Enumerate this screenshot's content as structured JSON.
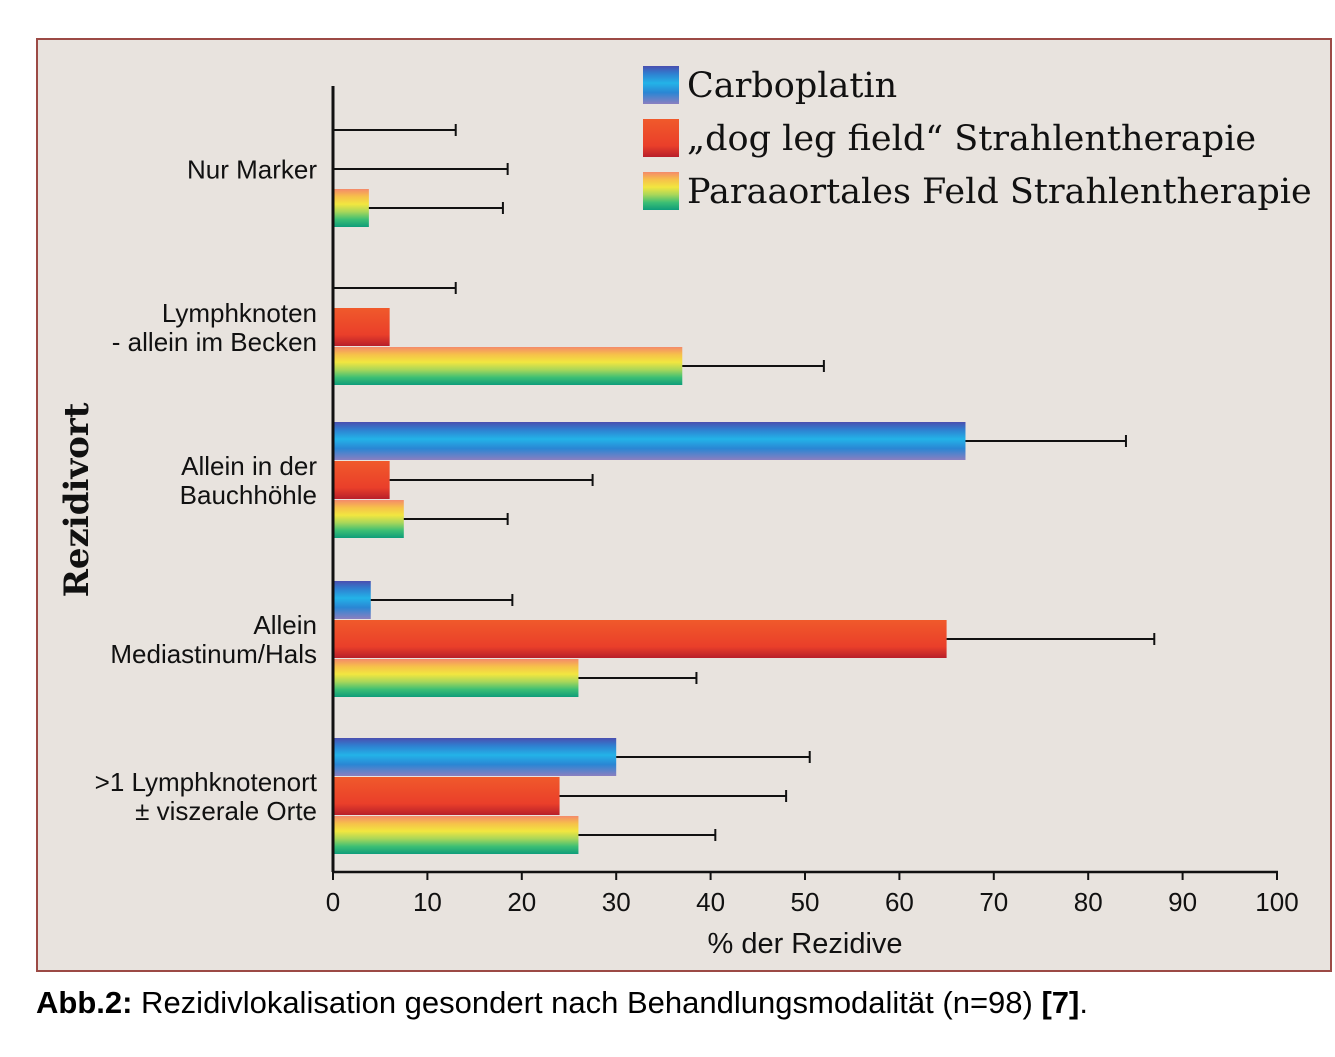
{
  "chart_data": {
    "type": "bar",
    "orientation": "horizontal",
    "ylabel": "Rezidivort",
    "xlabel": "% der Rezidive",
    "xlim": [
      0,
      100
    ],
    "xticks": [
      "0",
      "10",
      "20",
      "30",
      "40",
      "50",
      "60",
      "70",
      "80",
      "90",
      "100"
    ],
    "categories": [
      [
        "Nur Marker"
      ],
      [
        "Lymphknoten",
        "- allein im Becken"
      ],
      [
        "Allein in der",
        "Bauchhöhle"
      ],
      [
        "Allein",
        "Mediastinum/Hals"
      ],
      [
        ">1 Lymphknotenort",
        "± viszerale Orte"
      ]
    ],
    "series": [
      {
        "name": "Carboplatin",
        "color": "#2f7fd0",
        "values": [
          0,
          0,
          67,
          4,
          30
        ],
        "error_upper": [
          13,
          13,
          84,
          19,
          50.5
        ]
      },
      {
        "name": "„dog leg field“ Strahlentherapie",
        "color": "#e8452a",
        "values": [
          0,
          6,
          6,
          65,
          24
        ],
        "error_upper": [
          18.5,
          null,
          27.5,
          87,
          48
        ]
      },
      {
        "name": "Paraaortales Feld Strahlentherapie",
        "color": "#f4b84a",
        "values": [
          3.8,
          37,
          7.5,
          26,
          26
        ],
        "error_upper": [
          18,
          52,
          18.5,
          38.5,
          40.5
        ]
      }
    ],
    "legend": "top-right",
    "grid": false
  },
  "caption": {
    "label": "Abb.2:",
    "text": " Rezidivlokalisation gesondert nach Behandlungsmodalität (n=98) ",
    "ref": "[7]",
    "end": "."
  }
}
